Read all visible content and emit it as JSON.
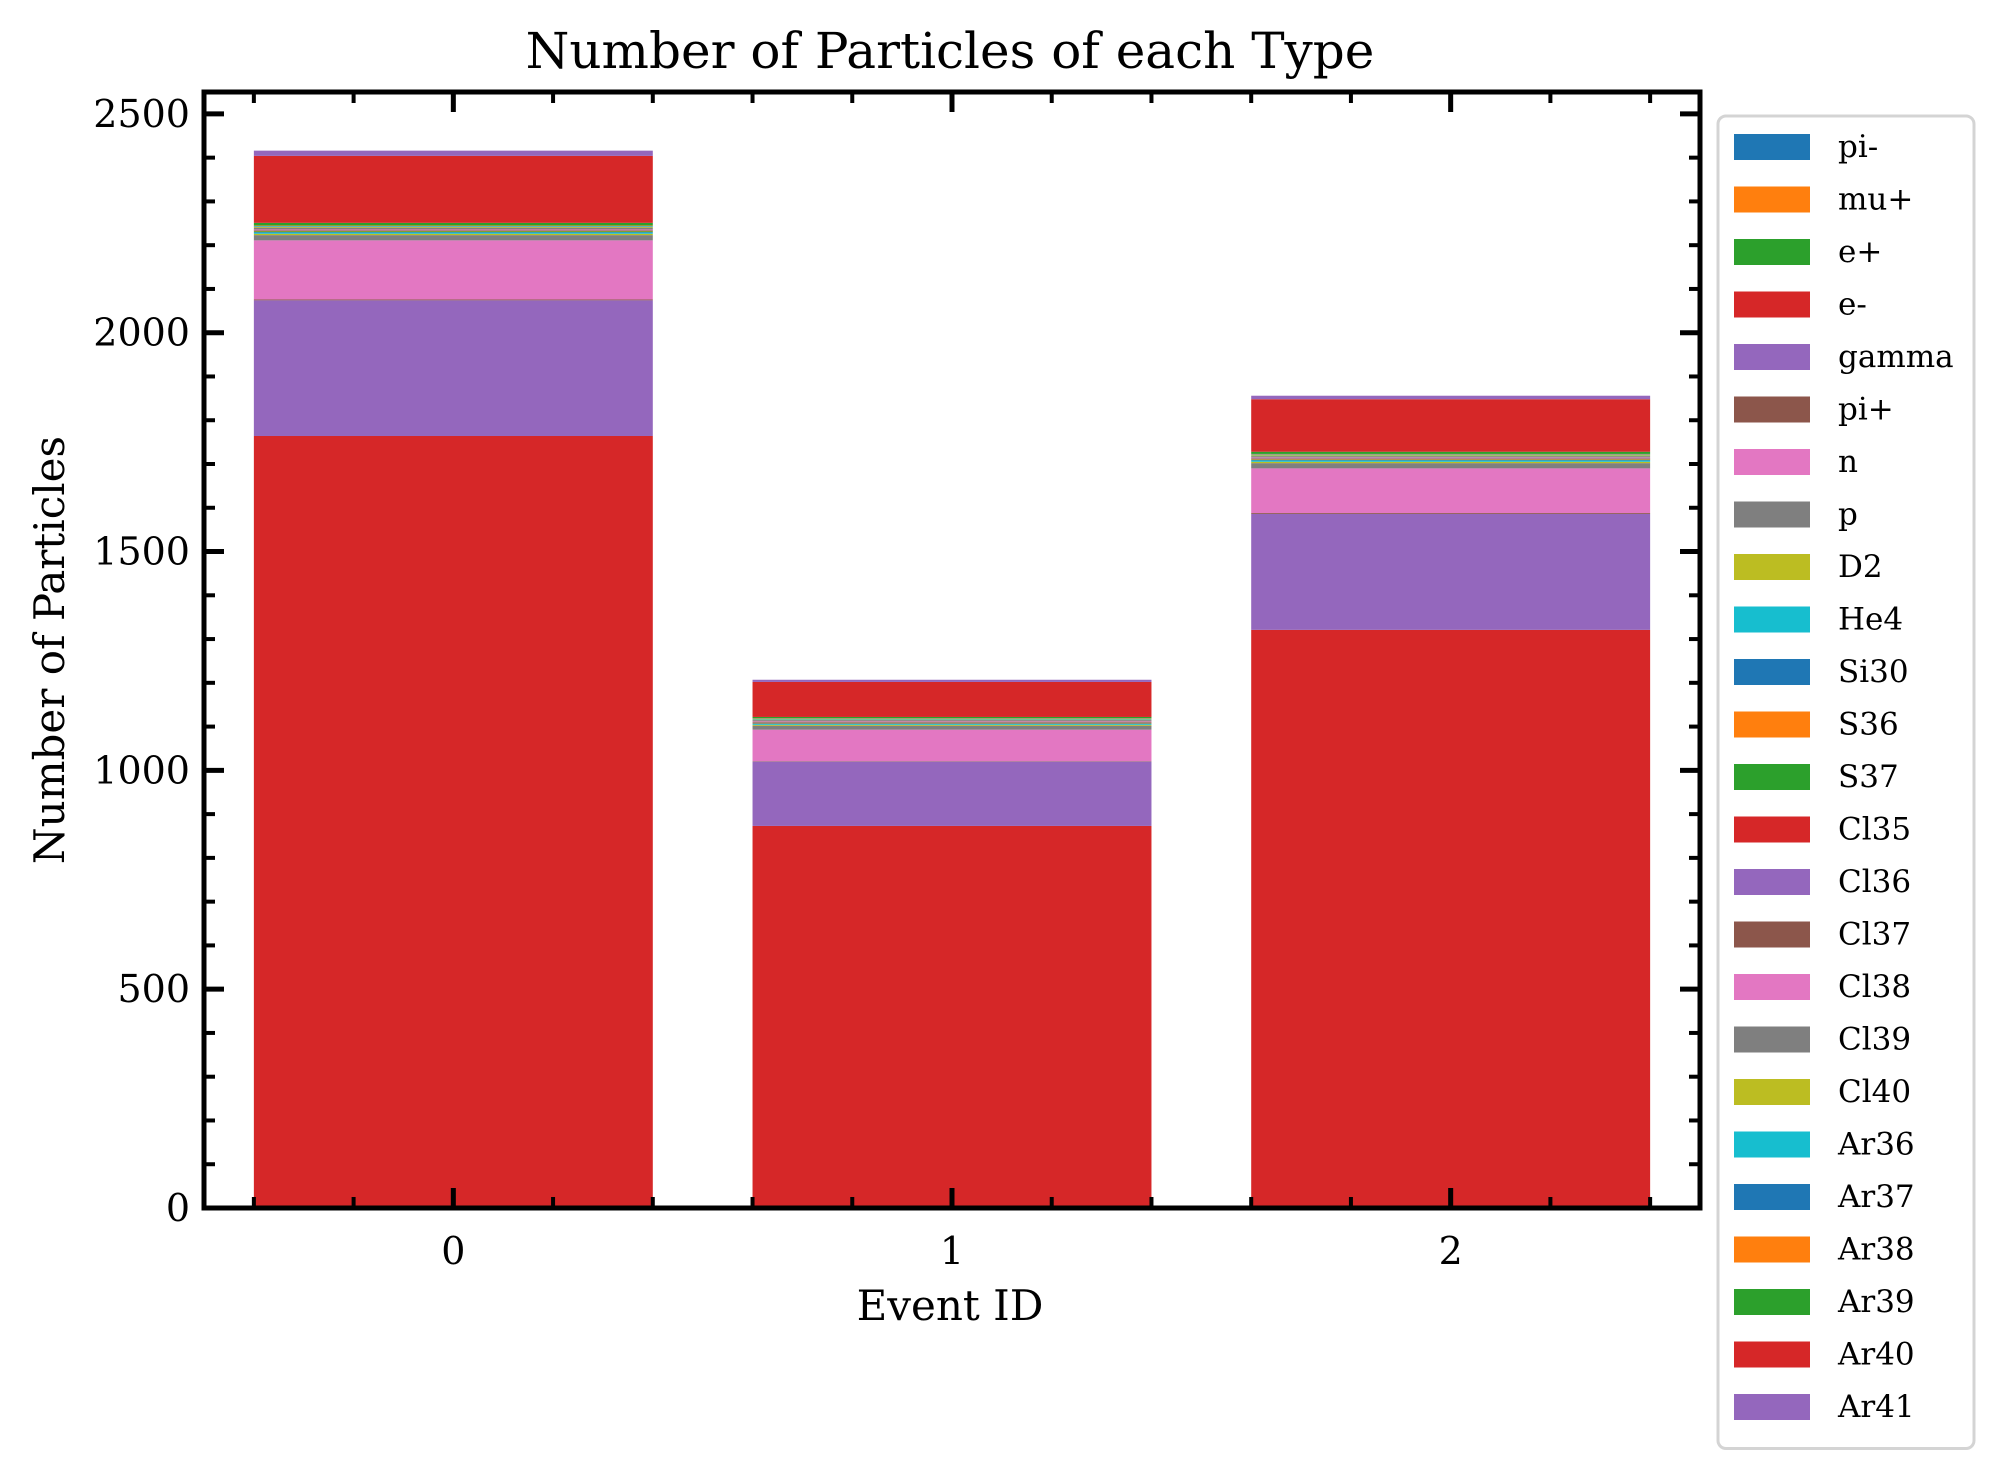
{
  "chart_data": {
    "type": "bar",
    "stacked": true,
    "title": "Number of Particles of each Type",
    "xlabel": "Event ID",
    "ylabel": "Number of Particles",
    "categories": [
      "0",
      "1",
      "2"
    ],
    "ylim": [
      0,
      2550
    ],
    "yticks": [
      0,
      500,
      1000,
      1500,
      2000,
      2500
    ],
    "grid": false,
    "legend_position": "outside-right",
    "series": [
      {
        "name": "pi-",
        "color": "#1f77b4",
        "values": [
          1,
          0,
          1
        ]
      },
      {
        "name": "mu+",
        "color": "#ff7f0e",
        "values": [
          1,
          1,
          1
        ]
      },
      {
        "name": "e+",
        "color": "#2ca02c",
        "values": [
          2,
          1,
          1
        ]
      },
      {
        "name": "e-",
        "color": "#d62728",
        "values": [
          1760,
          871,
          1318
        ]
      },
      {
        "name": "gamma",
        "color": "#9467bd",
        "values": [
          310,
          147,
          265
        ]
      },
      {
        "name": "pi+",
        "color": "#8c564b",
        "values": [
          2,
          1,
          2
        ]
      },
      {
        "name": "n",
        "color": "#e377c2",
        "values": [
          135,
          72,
          102
        ]
      },
      {
        "name": "p",
        "color": "#7f7f7f",
        "values": [
          12,
          9,
          12
        ]
      },
      {
        "name": "D2",
        "color": "#bcbd22",
        "values": [
          3,
          2,
          3
        ]
      },
      {
        "name": "He4",
        "color": "#17becf",
        "values": [
          3,
          2,
          3
        ]
      },
      {
        "name": "Si30",
        "color": "#1f77b4",
        "values": [
          1,
          1,
          1
        ]
      },
      {
        "name": "S36",
        "color": "#ff7f0e",
        "values": [
          1,
          1,
          1
        ]
      },
      {
        "name": "S37",
        "color": "#2ca02c",
        "values": [
          2,
          1,
          1
        ]
      },
      {
        "name": "Cl35",
        "color": "#d62728",
        "values": [
          1,
          1,
          1
        ]
      },
      {
        "name": "Cl36",
        "color": "#9467bd",
        "values": [
          1,
          1,
          1
        ]
      },
      {
        "name": "Cl37",
        "color": "#8c564b",
        "values": [
          1,
          1,
          1
        ]
      },
      {
        "name": "Cl38",
        "color": "#e377c2",
        "values": [
          1,
          1,
          1
        ]
      },
      {
        "name": "Cl39",
        "color": "#7f7f7f",
        "values": [
          3,
          2,
          3
        ]
      },
      {
        "name": "Cl40",
        "color": "#bcbd22",
        "values": [
          2,
          1,
          2
        ]
      },
      {
        "name": "Ar36",
        "color": "#17becf",
        "values": [
          1,
          1,
          1
        ]
      },
      {
        "name": "Ar37",
        "color": "#1f77b4",
        "values": [
          1,
          1,
          1
        ]
      },
      {
        "name": "Ar38",
        "color": "#ff7f0e",
        "values": [
          1,
          1,
          1
        ]
      },
      {
        "name": "Ar39",
        "color": "#2ca02c",
        "values": [
          6,
          3,
          5
        ]
      },
      {
        "name": "Ar40",
        "color": "#d62728",
        "values": [
          153,
          80,
          120
        ]
      },
      {
        "name": "Ar41",
        "color": "#9467bd",
        "values": [
          12,
          5,
          8
        ]
      }
    ]
  }
}
